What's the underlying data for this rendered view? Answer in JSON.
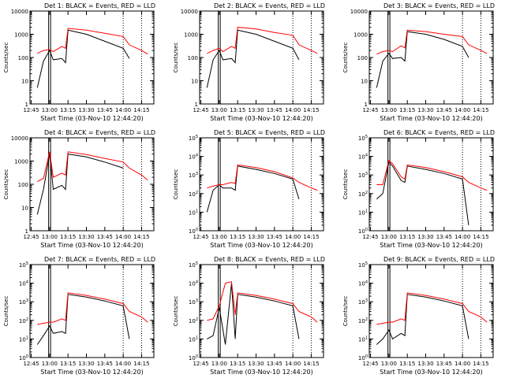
{
  "start_time_label": "Start Time (03-Nov-10 12:44:20)",
  "ylabel": "Counts/sec",
  "colors": {
    "events": "#000000",
    "lld": "#ff0000"
  },
  "x_ticks": [
    "12:45",
    "13:00",
    "13:15",
    "13:30",
    "13:45",
    "14:00",
    "14:15"
  ],
  "vertical_markers_dotted": [
    "14:00",
    "14:15"
  ],
  "chart_data": [
    {
      "type": "line",
      "title": "Det 1: BLACK = Events, RED = LLD",
      "xlabel": "Start Time (03-Nov-10 12:44:20)",
      "ylabel": "Counts/sec",
      "yscale": "log",
      "ylim": [
        1,
        10000
      ],
      "ytick_labels": [
        "1",
        "10",
        "100",
        "1000",
        "10000"
      ],
      "x": [
        "12:50",
        "12:55",
        "13:00",
        "13:03",
        "13:10",
        "13:13",
        "13:15",
        "13:30",
        "13:45",
        "14:00",
        "14:05",
        "14:15",
        "14:20"
      ],
      "series": [
        {
          "name": "BLACK = Events",
          "values": [
            5,
            70,
            200,
            80,
            90,
            60,
            1500,
            1000,
            500,
            250,
            90,
            null,
            null
          ]
        },
        {
          "name": "RED = LLD",
          "values": [
            150,
            200,
            220,
            180,
            300,
            250,
            1800,
            1500,
            1100,
            800,
            350,
            200,
            140
          ]
        }
      ]
    },
    {
      "type": "line",
      "title": "Det 2: BLACK = Events, RED = LLD",
      "xlabel": "Start Time (03-Nov-10 12:44:20)",
      "ylabel": "Counts/sec",
      "yscale": "log",
      "ylim": [
        1,
        10000
      ],
      "ytick_labels": [
        "1",
        "10",
        "100",
        "1000",
        "10000"
      ],
      "x": [
        "12:50",
        "12:55",
        "13:00",
        "13:03",
        "13:10",
        "13:13",
        "13:15",
        "13:30",
        "13:45",
        "14:00",
        "14:05",
        "14:15",
        "14:20"
      ],
      "series": [
        {
          "name": "BLACK = Events",
          "values": [
            5,
            80,
            200,
            80,
            90,
            60,
            1500,
            1000,
            500,
            250,
            80,
            null,
            null
          ]
        },
        {
          "name": "RED = LLD",
          "values": [
            150,
            200,
            250,
            180,
            300,
            250,
            2000,
            1700,
            1200,
            900,
            350,
            200,
            150
          ]
        }
      ]
    },
    {
      "type": "line",
      "title": "Det 3: BLACK = Events, RED = LLD",
      "xlabel": "Start Time (03-Nov-10 12:44:20)",
      "ylabel": "Counts/sec",
      "yscale": "log",
      "ylim": [
        1,
        10000
      ],
      "ytick_labels": [
        "1",
        "10",
        "100",
        "1000",
        "10000"
      ],
      "x": [
        "12:50",
        "12:55",
        "13:00",
        "13:03",
        "13:10",
        "13:13",
        "13:15",
        "13:30",
        "13:45",
        "14:00",
        "14:05",
        "14:15",
        "14:20"
      ],
      "series": [
        {
          "name": "BLACK = Events",
          "values": [
            5,
            70,
            150,
            90,
            100,
            70,
            1300,
            1000,
            600,
            300,
            100,
            null,
            null
          ]
        },
        {
          "name": "RED = LLD",
          "values": [
            140,
            180,
            200,
            180,
            320,
            260,
            1500,
            1300,
            1000,
            800,
            350,
            200,
            150
          ]
        }
      ]
    },
    {
      "type": "line",
      "title": "Det 4: BLACK = Events, RED = LLD",
      "xlabel": "Start Time (03-Nov-10 12:44:20)",
      "ylabel": "Counts/sec",
      "yscale": "log",
      "ylim": [
        1,
        10000
      ],
      "ytick_labels": [
        "1",
        "10",
        "100",
        "1000",
        "10000"
      ],
      "x": [
        "12:50",
        "12:55",
        "13:00",
        "13:03",
        "13:10",
        "13:13",
        "13:15",
        "13:30",
        "13:45",
        "14:00",
        "14:05",
        "14:15",
        "14:20"
      ],
      "series": [
        {
          "name": "BLACK = Events",
          "values": [
            5,
            60,
            2000,
            60,
            90,
            60,
            2000,
            1500,
            900,
            500,
            null,
            null,
            null
          ]
        },
        {
          "name": "RED = LLD",
          "values": [
            130,
            180,
            2500,
            200,
            300,
            250,
            2500,
            1900,
            1300,
            900,
            500,
            250,
            150
          ]
        }
      ]
    },
    {
      "type": "line",
      "title": "Det 5: BLACK = Events, RED = LLD",
      "xlabel": "Start Time (03-Nov-10 12:44:20)",
      "ylabel": "Counts/sec",
      "yscale": "log",
      "ylim": [
        1,
        100000
      ],
      "ytick_labels": [
        "10^0",
        "10^1",
        "10^2",
        "10^3",
        "10^4",
        "10^5"
      ],
      "x": [
        "12:50",
        "12:55",
        "13:00",
        "13:03",
        "13:10",
        "13:13",
        "13:15",
        "13:30",
        "13:45",
        "14:00",
        "14:05",
        "14:15",
        "14:20"
      ],
      "series": [
        {
          "name": "BLACK = Events",
          "values": [
            10,
            150,
            300,
            200,
            200,
            150,
            3000,
            2000,
            1200,
            600,
            50,
            null,
            null
          ]
        },
        {
          "name": "RED = LLD",
          "values": [
            200,
            250,
            300,
            300,
            400,
            350,
            3500,
            2500,
            1500,
            700,
            400,
            200,
            150
          ]
        }
      ]
    },
    {
      "type": "line",
      "title": "Det 6: BLACK = Events, RED = LLD",
      "xlabel": "Start Time (03-Nov-10 12:44:20)",
      "ylabel": "Counts/sec",
      "yscale": "log",
      "ylim": [
        1,
        100000
      ],
      "ytick_labels": [
        "10^0",
        "10^1",
        "10^2",
        "10^3",
        "10^4",
        "10^5"
      ],
      "x": [
        "12:50",
        "12:55",
        "13:00",
        "13:03",
        "13:10",
        "13:13",
        "13:15",
        "13:30",
        "13:45",
        "14:00",
        "14:05",
        "14:15",
        "14:20"
      ],
      "series": [
        {
          "name": "BLACK = Events",
          "values": [
            50,
            100,
            5000,
            3000,
            500,
            400,
            3000,
            2000,
            1200,
            600,
            2,
            null,
            null
          ]
        },
        {
          "name": "RED = LLD",
          "values": [
            300,
            300,
            6000,
            4000,
            800,
            600,
            3500,
            2500,
            1500,
            800,
            400,
            200,
            150
          ]
        }
      ]
    },
    {
      "type": "line",
      "title": "Det 7: BLACK = Events, RED = LLD",
      "xlabel": "Start Time (03-Nov-10 12:44:20)",
      "ylabel": "Counts/sec",
      "yscale": "log",
      "ylim": [
        1,
        100000
      ],
      "ytick_labels": [
        "10^0",
        "10^1",
        "10^2",
        "10^3",
        "10^4",
        "10^5"
      ],
      "x": [
        "12:50",
        "12:55",
        "13:00",
        "13:03",
        "13:10",
        "13:13",
        "13:15",
        "13:30",
        "13:45",
        "14:00",
        "14:05",
        "14:15",
        "14:20"
      ],
      "series": [
        {
          "name": "BLACK = Events",
          "values": [
            5,
            15,
            50,
            20,
            25,
            20,
            2500,
            1800,
            1100,
            600,
            10,
            null,
            null
          ]
        },
        {
          "name": "RED = LLD",
          "values": [
            60,
            70,
            80,
            80,
            120,
            100,
            3000,
            2200,
            1400,
            800,
            300,
            150,
            80
          ]
        }
      ]
    },
    {
      "type": "line",
      "title": "Det 8: BLACK = Events, RED = LLD",
      "xlabel": "Start Time (03-Nov-10 12:44:20)",
      "ylabel": "Counts/sec",
      "yscale": "log",
      "ylim": [
        1,
        100000
      ],
      "ytick_labels": [
        "10^0",
        "10^1",
        "10^2",
        "10^3",
        "10^4",
        "10^5"
      ],
      "x": [
        "12:50",
        "12:55",
        "13:00",
        "13:05",
        "13:10",
        "13:13",
        "13:15",
        "13:30",
        "13:45",
        "14:00",
        "14:05",
        "14:15",
        "14:20"
      ],
      "series": [
        {
          "name": "BLACK = Events",
          "values": [
            10,
            15,
            500,
            5,
            10000,
            10,
            2500,
            1800,
            1100,
            600,
            10,
            null,
            null
          ]
        },
        {
          "name": "RED = LLD",
          "values": [
            100,
            120,
            600,
            10000,
            12000,
            200,
            3000,
            2200,
            1400,
            800,
            300,
            150,
            80
          ]
        }
      ]
    },
    {
      "type": "line",
      "title": "Det 9: BLACK = Events, RED = LLD",
      "xlabel": "Start Time (03-Nov-10 12:44:20)",
      "ylabel": "Counts/sec",
      "yscale": "log",
      "ylim": [
        1,
        100000
      ],
      "ytick_labels": [
        "10^0",
        "10^1",
        "10^2",
        "10^3",
        "10^4",
        "10^5"
      ],
      "x": [
        "12:50",
        "12:55",
        "13:00",
        "13:03",
        "13:10",
        "13:13",
        "13:15",
        "13:30",
        "13:45",
        "14:00",
        "14:05",
        "14:15",
        "14:20"
      ],
      "series": [
        {
          "name": "BLACK = Events",
          "values": [
            5,
            10,
            30,
            10,
            20,
            15,
            2500,
            1800,
            1100,
            600,
            10,
            null,
            null
          ]
        },
        {
          "name": "RED = LLD",
          "values": [
            60,
            70,
            80,
            80,
            120,
            100,
            3000,
            2200,
            1400,
            800,
            300,
            150,
            80
          ]
        }
      ]
    }
  ]
}
